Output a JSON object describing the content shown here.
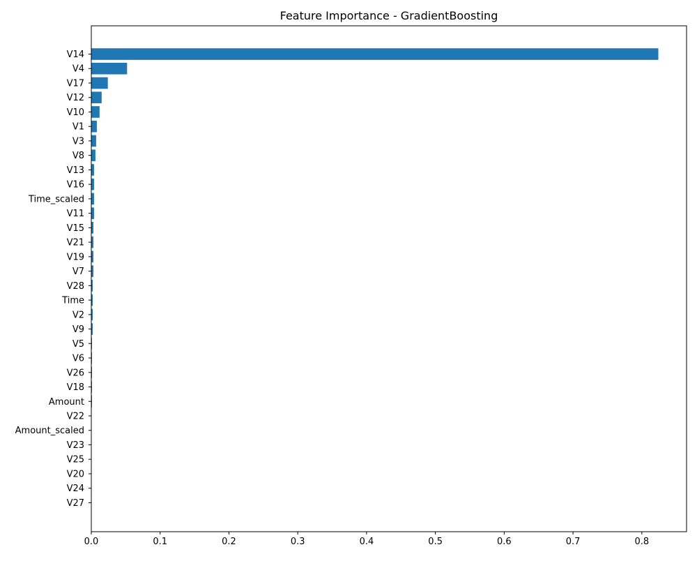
{
  "chart_data": {
    "type": "bar",
    "orientation": "horizontal",
    "title": "Feature Importance - GradientBoosting",
    "xlabel": "",
    "ylabel": "",
    "xlim": [
      0,
      0.865
    ],
    "xticks": [
      0.0,
      0.1,
      0.2,
      0.3,
      0.4,
      0.5,
      0.6,
      0.7,
      0.8
    ],
    "xtick_labels": [
      "0.0",
      "0.1",
      "0.2",
      "0.3",
      "0.4",
      "0.5",
      "0.6",
      "0.7",
      "0.8"
    ],
    "grid": false,
    "bar_color": "#1f77b4",
    "categories": [
      "V14",
      "V4",
      "V17",
      "V12",
      "V10",
      "V1",
      "V3",
      "V8",
      "V13",
      "V16",
      "Time_scaled",
      "V11",
      "V15",
      "V21",
      "V19",
      "V7",
      "V28",
      "Time",
      "V2",
      "V9",
      "V5",
      "V6",
      "V26",
      "V18",
      "Amount",
      "V22",
      "Amount_scaled",
      "V23",
      "V25",
      "V20",
      "V24",
      "V27"
    ],
    "values": [
      0.824,
      0.052,
      0.024,
      0.015,
      0.012,
      0.008,
      0.007,
      0.006,
      0.004,
      0.004,
      0.004,
      0.004,
      0.003,
      0.003,
      0.003,
      0.003,
      0.002,
      0.002,
      0.002,
      0.002,
      0.001,
      0.001,
      0.001,
      0.001,
      0.001,
      0.0005,
      0.0005,
      0.0005,
      0.0003,
      0.0003,
      0.0002,
      0.0001
    ]
  }
}
